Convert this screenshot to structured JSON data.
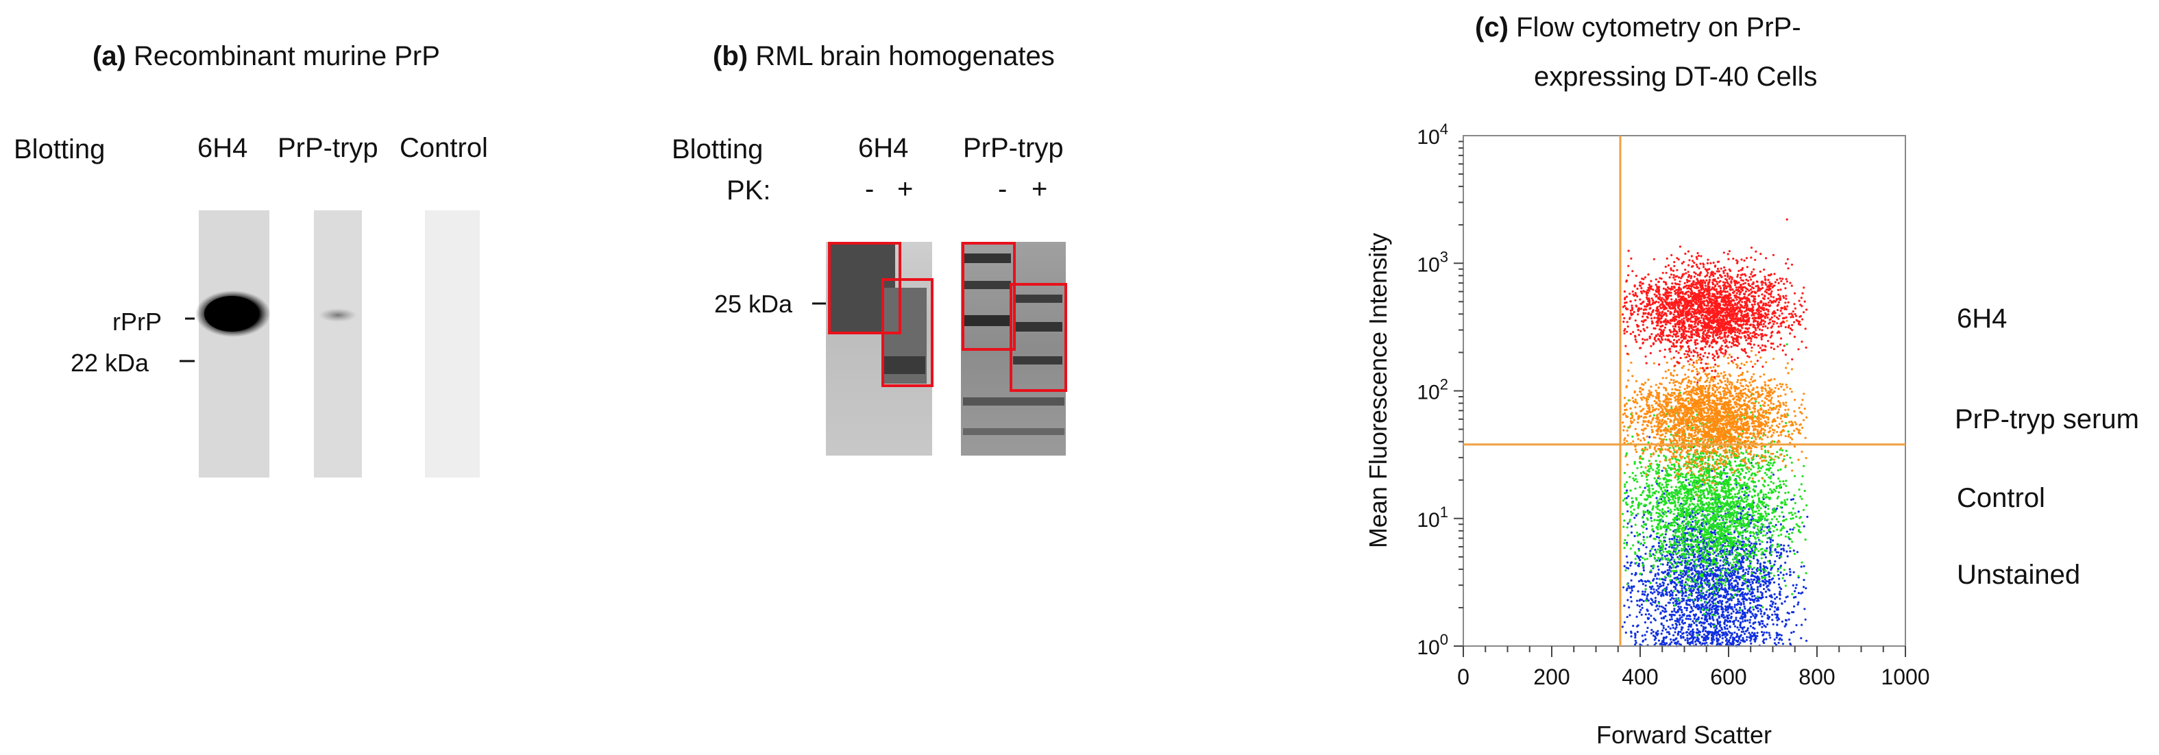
{
  "panel_a": {
    "tag": "(a)",
    "title": "Recombinant murine PrP",
    "blotting_label": "Blotting",
    "lanes": [
      "6H4",
      "PrP-tryp",
      "Control"
    ],
    "markers": [
      "rPrP",
      "22 kDa"
    ]
  },
  "panel_b": {
    "tag": "(b)",
    "title": "RML brain homogenates",
    "blotting_label": "Blotting",
    "lanes": [
      "6H4",
      "PrP-tryp"
    ],
    "pk_label": "PK:",
    "pk_signs": [
      "-",
      "+",
      "-",
      "+"
    ],
    "marker": "25 kDa"
  },
  "panel_c": {
    "tag": "(c)",
    "title_line1": "Flow cytometry on PrP-",
    "title_line2": "expressing DT-40 Cells",
    "legend": [
      "6H4",
      "PrP-tryp serum",
      "Control",
      "Unstained"
    ]
  },
  "chart_data": {
    "type": "scatter",
    "title": "Flow cytometry on PrP- expressing DT-40 Cells",
    "xlabel": "Forward Scatter",
    "ylabel": "Mean Fluorescence Intensity",
    "xlim": [
      0,
      1000
    ],
    "ylim": [
      1,
      10000
    ],
    "y_scale": "log",
    "x_ticks": [
      "0",
      "200",
      "400",
      "600",
      "800",
      "1000"
    ],
    "y_ticks": [
      {
        "value": 1,
        "base": "10",
        "exp": "0"
      },
      {
        "value": 10,
        "base": "10",
        "exp": "1"
      },
      {
        "value": 100,
        "base": "10",
        "exp": "2"
      },
      {
        "value": 1000,
        "base": "10",
        "exp": "3"
      },
      {
        "value": 10000,
        "base": "10",
        "exp": "4"
      }
    ],
    "gate_x": 355,
    "gate_y": 38,
    "gate_color": "#f0a040",
    "series": [
      {
        "name": "Unstained",
        "color": "#1030e0",
        "x_center": 560,
        "x_spread": 200,
        "y_center": 3,
        "y_spread_log": 0.55
      },
      {
        "name": "Control",
        "color": "#20e020",
        "x_center": 560,
        "x_spread": 200,
        "y_center": 12,
        "y_spread_log": 0.5
      },
      {
        "name": "PrP-tryp serum",
        "color": "#ff8c10",
        "x_center": 560,
        "x_spread": 200,
        "y_center": 60,
        "y_spread_log": 0.3
      },
      {
        "name": "6H4",
        "color": "#ff1a1a",
        "x_center": 560,
        "x_spread": 200,
        "y_center": 420,
        "y_spread_log": 0.28
      }
    ]
  }
}
